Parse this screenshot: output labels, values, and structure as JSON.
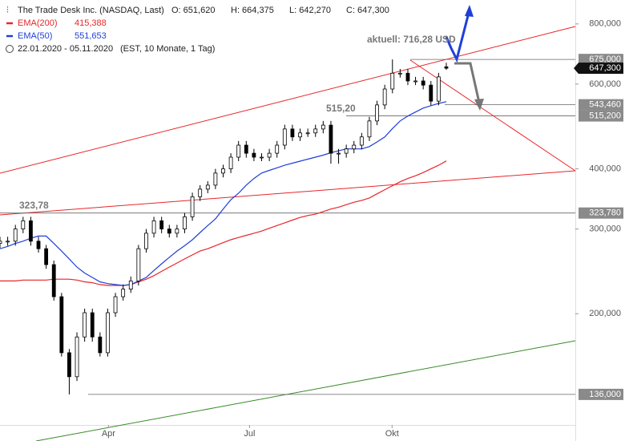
{
  "chart_data": {
    "type": "candlestick",
    "title": "The Trade Desk Inc. (NASDAQ, Last)",
    "ohlc_labels": [
      "O: 651,620",
      "H: 664,375",
      "L: 642,270",
      "C: 647,300"
    ],
    "period": "22.01.2020 - 05.11.2020",
    "period_note": "(EST, 10 Monate, 1 Tag)",
    "log_scale": true,
    "ylim": [
      117.5,
      897
    ],
    "yticks": [
      {
        "value": 200,
        "label": "200,000"
      },
      {
        "value": 300,
        "label": "300,000"
      },
      {
        "value": 400,
        "label": "400,000"
      },
      {
        "value": 600,
        "label": "600,000"
      },
      {
        "value": 800,
        "label": "800,000"
      }
    ],
    "xticks": [
      {
        "value": "2020-04",
        "label": "Apr"
      },
      {
        "value": "2020-07",
        "label": "Jul"
      },
      {
        "value": "2020-10",
        "label": "Okt"
      }
    ],
    "candles": {
      "open": [
        280,
        283,
        283,
        300,
        312,
        283,
        273,
        253,
        217,
        166,
        148,
        179,
        201,
        179,
        166,
        201,
        217,
        225,
        234,
        273,
        294,
        312,
        300,
        294,
        300,
        318,
        350,
        363,
        370,
        392,
        400,
        423,
        448,
        431,
        423,
        423,
        431,
        448,
        484,
        466,
        475,
        475,
        484,
        493,
        431,
        431,
        440,
        448,
        466,
        503,
        543,
        586,
        632,
        632,
        609,
        609,
        597,
        553,
        651.62
      ],
      "high": [
        289,
        289,
        306,
        318,
        318,
        289,
        278,
        258,
        221,
        169,
        183,
        205,
        205,
        183,
        205,
        221,
        230,
        239,
        278,
        300,
        318,
        318,
        306,
        306,
        324,
        357,
        370,
        377,
        400,
        408,
        431,
        457,
        457,
        440,
        431,
        440,
        457,
        494,
        494,
        485,
        485,
        494,
        503,
        503,
        440,
        449,
        457,
        475,
        513,
        554,
        598,
        675,
        645,
        645,
        621,
        621,
        609,
        633,
        664.375
      ],
      "low": [
        274,
        277,
        277,
        294,
        277,
        268,
        248,
        213,
        163,
        136,
        145,
        175,
        175,
        163,
        163,
        197,
        213,
        221,
        229,
        268,
        288,
        294,
        288,
        288,
        294,
        312,
        343,
        356,
        363,
        384,
        392,
        415,
        422,
        415,
        415,
        415,
        422,
        439,
        457,
        457,
        466,
        466,
        474,
        410,
        410,
        422,
        431,
        439,
        457,
        493,
        532,
        574,
        619,
        597,
        597,
        585,
        542,
        542,
        642.27
      ],
      "close": [
        283,
        283,
        300,
        312,
        283,
        273,
        253,
        217,
        166,
        148,
        179,
        201,
        179,
        166,
        201,
        217,
        225,
        234,
        273,
        294,
        312,
        300,
        294,
        300,
        318,
        350,
        363,
        370,
        392,
        400,
        423,
        448,
        431,
        423,
        423,
        431,
        448,
        484,
        466,
        475,
        475,
        484,
        493,
        431,
        431,
        440,
        448,
        466,
        503,
        543,
        586,
        632,
        632,
        609,
        609,
        597,
        553,
        621,
        647.3
      ],
      "last_label": "647,300"
    },
    "series": [
      {
        "name": "EMA(200)",
        "color": "#e8262a",
        "last_label": "415,388",
        "values": [
          234,
          234,
          234,
          235,
          235,
          235,
          235,
          236,
          236,
          236,
          235,
          233,
          232,
          230,
          229,
          229,
          229,
          230,
          233,
          236,
          240,
          245,
          250,
          255,
          260,
          265,
          270,
          273,
          277,
          281,
          285,
          288,
          291,
          294,
          297,
          301,
          305,
          309,
          313,
          317,
          320,
          322,
          326,
          330,
          333,
          337,
          341,
          344,
          348,
          355,
          362,
          369,
          376,
          382,
          387,
          393,
          400,
          407,
          415.388
        ]
      },
      {
        "name": "EMA(50)",
        "color": "#1f3fd8",
        "last_label": "551,653",
        "values": [
          273,
          276,
          280,
          283,
          287,
          290,
          290,
          280,
          270,
          260,
          250,
          243,
          238,
          233,
          231,
          230,
          229,
          230,
          234,
          238,
          246,
          254,
          262,
          270,
          277,
          285,
          295,
          305,
          315,
          330,
          345,
          356,
          370,
          382,
          392,
          397,
          402,
          407,
          411,
          415,
          419,
          423,
          427,
          432,
          436,
          440,
          440,
          440,
          445,
          455,
          466,
          485,
          503,
          515,
          525,
          535,
          541,
          547,
          551.653
        ]
      }
    ],
    "levels": [
      {
        "value": 675,
        "label": "675,000"
      },
      {
        "value": 543.46,
        "label": "543,460"
      },
      {
        "value": 515.2,
        "label": "515,200"
      },
      {
        "value": 323.78,
        "label": "323,780"
      },
      {
        "value": 136,
        "label": "136,000"
      }
    ],
    "annotations": [
      {
        "text": "323,78",
        "value": 323.78
      },
      {
        "text": "515,20",
        "value": 515.2
      },
      {
        "text": "aktuell: 716,28 USD",
        "value": 716.28
      }
    ]
  }
}
